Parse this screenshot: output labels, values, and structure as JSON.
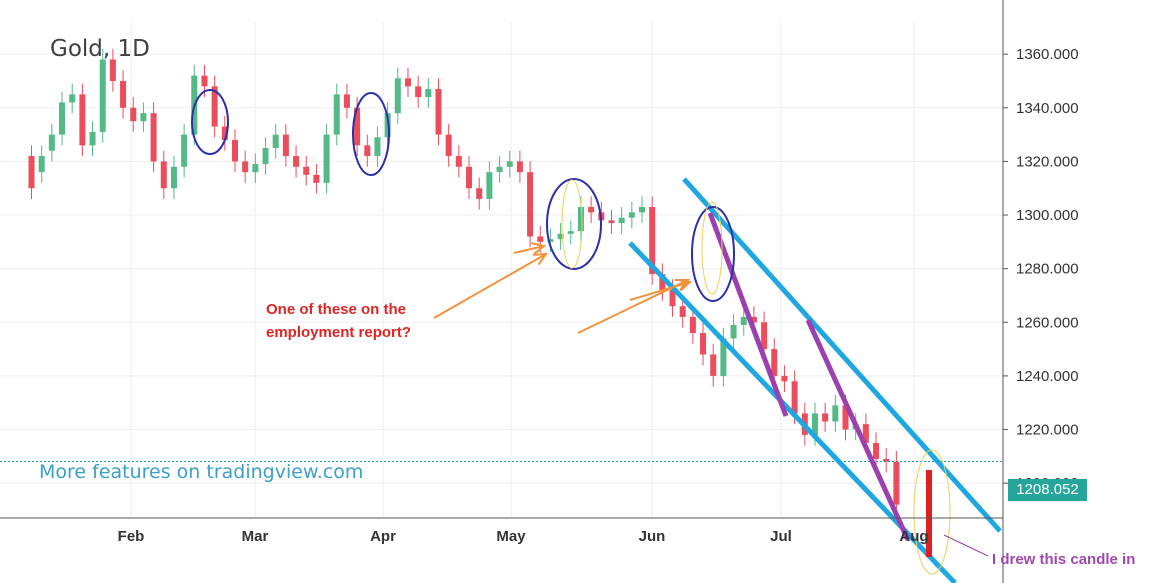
{
  "symbol": "Gold, 1D",
  "promo_text": "More features on tradingview.com",
  "annotation_employment": [
    "One of these on the",
    "employment report?"
  ],
  "annotation_drew": "I drew this candle in",
  "last_price_label": "1208.052",
  "colors": {
    "up": "#53b987",
    "down": "#eb4d5c",
    "channel": "#1ea7e1",
    "trend": "#9c3fb1",
    "circle": "#2b2fa8",
    "arrow": "#f0923c",
    "highlight": "#ead15a",
    "drawn_candle": "#e02020",
    "last_price_line": "#26a69a"
  },
  "chart_data": {
    "type": "candlestick",
    "title": "Gold, 1D",
    "y_ticks": [
      "1360.000",
      "1340.000",
      "1320.000",
      "1300.000",
      "1280.000",
      "1260.000",
      "1240.000",
      "1220.000",
      "1200.000"
    ],
    "ylim": [
      1187,
      1372
    ],
    "x_ticks": [
      "Feb",
      "Mar",
      "Apr",
      "May",
      "Jun",
      "Jul",
      "Aug"
    ],
    "last_price": 1208.052,
    "series": [
      {
        "name": "",
        "points": [
          [
            1.0,
            1322
          ],
          [
            1.55,
            1316
          ],
          [
            2.1,
            1324
          ],
          [
            2.65,
            1330
          ],
          [
            3.2,
            1342
          ],
          [
            3.75,
            1345
          ],
          [
            4.3,
            1326
          ],
          [
            4.85,
            1331
          ],
          [
            5.4,
            1358
          ],
          [
            5.95,
            1350
          ],
          [
            6.5,
            1340
          ],
          [
            7.05,
            1335
          ],
          [
            7.6,
            1338
          ],
          [
            8.15,
            1320
          ],
          [
            8.7,
            1310
          ],
          [
            9.25,
            1318
          ],
          [
            9.8,
            1330
          ],
          [
            10.35,
            1352
          ],
          [
            10.9,
            1348
          ],
          [
            11.45,
            1333
          ],
          [
            12.0,
            1328
          ],
          [
            12.55,
            1320
          ],
          [
            13.1,
            1316
          ],
          [
            13.65,
            1319
          ],
          [
            14.2,
            1325
          ],
          [
            14.75,
            1330
          ],
          [
            15.3,
            1322
          ],
          [
            15.85,
            1318
          ],
          [
            16.4,
            1315
          ],
          [
            16.95,
            1312
          ],
          [
            17.5,
            1330
          ],
          [
            18.05,
            1345
          ],
          [
            18.6,
            1340
          ],
          [
            19.15,
            1326
          ],
          [
            19.7,
            1322
          ],
          [
            20.25,
            1329
          ],
          [
            20.8,
            1338
          ],
          [
            21.35,
            1351
          ],
          [
            21.9,
            1348
          ],
          [
            22.45,
            1344
          ],
          [
            23.0,
            1347
          ],
          [
            23.55,
            1330
          ],
          [
            24.1,
            1322
          ],
          [
            24.65,
            1318
          ],
          [
            25.2,
            1310
          ],
          [
            25.75,
            1306
          ],
          [
            26.3,
            1316
          ],
          [
            26.85,
            1318
          ],
          [
            27.4,
            1320
          ],
          [
            27.95,
            1316
          ],
          [
            28.5,
            1292
          ],
          [
            29.05,
            1290
          ],
          [
            29.6,
            1291
          ],
          [
            30.15,
            1293
          ],
          [
            30.7,
            1294
          ],
          [
            31.25,
            1303
          ],
          [
            31.8,
            1301
          ],
          [
            32.35,
            1298
          ],
          [
            32.9,
            1297
          ],
          [
            33.45,
            1299
          ],
          [
            34.0,
            1301
          ],
          [
            34.55,
            1303
          ],
          [
            35.1,
            1278
          ],
          [
            35.65,
            1272
          ],
          [
            36.2,
            1266
          ],
          [
            36.75,
            1262
          ],
          [
            37.3,
            1256
          ],
          [
            37.85,
            1248
          ],
          [
            38.4,
            1240
          ],
          [
            38.95,
            1254
          ],
          [
            39.5,
            1259
          ],
          [
            40.05,
            1262
          ],
          [
            40.6,
            1260
          ],
          [
            41.15,
            1250
          ],
          [
            41.7,
            1240
          ],
          [
            42.25,
            1238
          ],
          [
            42.8,
            1226
          ],
          [
            43.35,
            1218
          ],
          [
            43.9,
            1226
          ],
          [
            44.45,
            1223
          ],
          [
            45.0,
            1229
          ],
          [
            45.55,
            1220
          ],
          [
            46.1,
            1222
          ],
          [
            46.65,
            1215
          ],
          [
            47.2,
            1209
          ],
          [
            47.75,
            1208
          ]
        ]
      },
      {
        "name": "",
        "points": [
          [
            1.0,
            1310
          ],
          [
            1.55,
            1322
          ],
          [
            2.1,
            1330
          ],
          [
            2.65,
            1342
          ],
          [
            3.2,
            1345
          ],
          [
            3.75,
            1326
          ],
          [
            4.3,
            1331
          ],
          [
            4.85,
            1358
          ],
          [
            5.4,
            1350
          ],
          [
            5.95,
            1340
          ],
          [
            6.5,
            1335
          ],
          [
            7.05,
            1338
          ],
          [
            7.6,
            1320
          ],
          [
            8.15,
            1310
          ],
          [
            8.7,
            1318
          ],
          [
            9.25,
            1330
          ],
          [
            9.8,
            1352
          ],
          [
            10.35,
            1348
          ],
          [
            10.9,
            1333
          ],
          [
            11.45,
            1328
          ],
          [
            12.0,
            1320
          ],
          [
            12.55,
            1316
          ],
          [
            13.1,
            1319
          ],
          [
            13.65,
            1325
          ],
          [
            14.2,
            1330
          ],
          [
            14.75,
            1322
          ],
          [
            15.3,
            1318
          ],
          [
            15.85,
            1315
          ],
          [
            16.4,
            1312
          ],
          [
            16.95,
            1330
          ],
          [
            17.5,
            1345
          ],
          [
            18.05,
            1340
          ],
          [
            18.6,
            1326
          ],
          [
            19.15,
            1322
          ],
          [
            19.7,
            1329
          ],
          [
            20.25,
            1338
          ],
          [
            20.8,
            1351
          ],
          [
            21.35,
            1348
          ],
          [
            21.9,
            1344
          ],
          [
            22.45,
            1347
          ],
          [
            23.0,
            1330
          ],
          [
            23.55,
            1322
          ],
          [
            24.1,
            1318
          ],
          [
            24.65,
            1310
          ],
          [
            25.2,
            1306
          ],
          [
            25.75,
            1316
          ],
          [
            26.3,
            1318
          ],
          [
            26.85,
            1320
          ],
          [
            27.4,
            1316
          ],
          [
            27.95,
            1292
          ],
          [
            28.5,
            1290
          ],
          [
            29.05,
            1291
          ],
          [
            29.6,
            1293
          ],
          [
            30.15,
            1294
          ],
          [
            30.7,
            1303
          ],
          [
            31.25,
            1301
          ],
          [
            31.8,
            1298
          ],
          [
            32.35,
            1297
          ],
          [
            32.9,
            1299
          ],
          [
            33.45,
            1301
          ],
          [
            34.0,
            1303
          ],
          [
            34.55,
            1278
          ],
          [
            35.1,
            1272
          ],
          [
            35.65,
            1266
          ],
          [
            36.2,
            1262
          ],
          [
            36.75,
            1256
          ],
          [
            37.3,
            1248
          ],
          [
            37.85,
            1240
          ],
          [
            38.4,
            1254
          ],
          [
            38.95,
            1259
          ],
          [
            39.5,
            1262
          ],
          [
            40.05,
            1260
          ],
          [
            40.6,
            1250
          ],
          [
            41.15,
            1240
          ],
          [
            41.7,
            1238
          ],
          [
            42.25,
            1226
          ],
          [
            42.8,
            1218
          ],
          [
            43.35,
            1226
          ],
          [
            43.9,
            1223
          ],
          [
            44.45,
            1229
          ],
          [
            45.0,
            1220
          ],
          [
            45.55,
            1222
          ],
          [
            46.1,
            1215
          ],
          [
            46.65,
            1209
          ],
          [
            47.2,
            1208
          ],
          [
            47.75,
            1192
          ]
        ]
      }
    ]
  }
}
